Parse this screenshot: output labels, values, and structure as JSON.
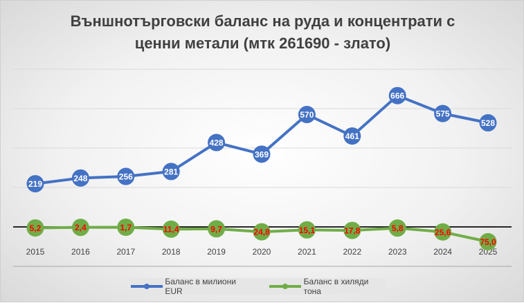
{
  "chart_data": {
    "type": "line",
    "title": "Външнотърговски баланс на руда и концентрати с ценни метали (мтк 261690 - злато)",
    "title_lines": [
      "Външнотърговски баланс на руда и концентрати с",
      "ценни метали (мтк 261690 - злато)"
    ],
    "categories": [
      "2015",
      "2016",
      "2017",
      "2018",
      "2019",
      "2020",
      "2021",
      "2022",
      "2023",
      "2024",
      "2025"
    ],
    "ylim": [
      -200,
      800
    ],
    "grid": true,
    "legend": "bottom",
    "series": [
      {
        "name": "Баланс в милиони EUR",
        "color": "#4472C4",
        "values": [
          219,
          248,
          256,
          281,
          428,
          369,
          570,
          461,
          666,
          575,
          528
        ],
        "labels": [
          "219",
          "248",
          "256",
          "281",
          "428",
          "369",
          "570",
          "461",
          "666",
          "575",
          "528"
        ]
      },
      {
        "name": "Баланс в хиляди тона",
        "color": "#70AD47",
        "values": [
          -5.2,
          -2.4,
          -1.7,
          -11.4,
          -9.7,
          -24.8,
          -15.1,
          -17.8,
          -5.8,
          -25.6,
          -75.0
        ],
        "labels": [
          "5,2",
          "2,4",
          "1,7",
          "11,4",
          "9,7",
          "24,8",
          "15,1",
          "17,8",
          "5,8",
          "25,6",
          "75,0"
        ]
      }
    ]
  }
}
